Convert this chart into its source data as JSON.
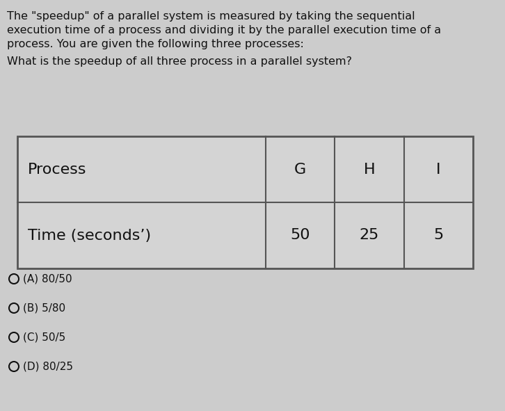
{
  "background_color": "#cccccc",
  "paragraph_text_lines": [
    "The \"speedup\" of a parallel system is measured by taking the sequential",
    "execution time of a process and dividing it by the parallel execution time of a",
    "process. You are given the following three processes:"
  ],
  "question_text": "What is the speedup of all three process in a parallel system?",
  "table": {
    "col1_header": "Process",
    "col_letters": [
      "G",
      "H",
      "I"
    ],
    "row_label": "Time (secondsʼ)",
    "row_values": [
      "50",
      "25",
      "5"
    ],
    "bg_color": "#d4d4d4",
    "border_color": "#555555"
  },
  "options": [
    "(A) 80/50",
    "(B) 5/80",
    "(C) 50/5",
    "(D) 80/25"
  ],
  "text_color": "#111111",
  "font_size_para": 11.5,
  "font_size_question": 11.5,
  "font_size_table": 16,
  "font_size_options": 11
}
